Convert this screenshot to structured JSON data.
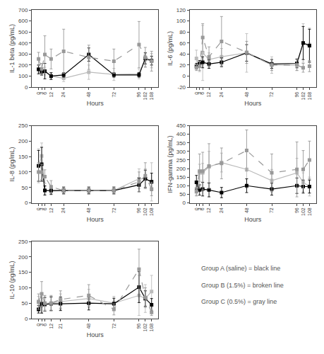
{
  "chart_data": [
    {
      "type": "line",
      "xlabel": "Hours",
      "ylabel": "IL-1 beta (pg/mL)",
      "x": [
        0,
        3,
        6,
        12,
        24,
        48,
        72,
        96,
        102,
        108
      ],
      "xlim": [
        -6.48,
        114.48
      ],
      "xticks": [
        0,
        3,
        6,
        12,
        24,
        48,
        72,
        96,
        102,
        108
      ],
      "ylim": [
        0,
        700
      ],
      "yticks": [
        0,
        100,
        200,
        300,
        400,
        500,
        600,
        700
      ],
      "grid": false,
      "series": [
        {
          "color": "#bbbbbb",
          "line_style": "solid",
          "marker": "square",
          "values": [
            165,
            135,
            145,
            100,
            80,
            135,
            115,
            120,
            250,
            240
          ],
          "errors": [
            35,
            30,
            35,
            30,
            30,
            65,
            55,
            45,
            65,
            65
          ]
        },
        {
          "color": "#000000",
          "line_style": "solid",
          "marker": "square",
          "values": [
            160,
            140,
            145,
            100,
            110,
            295,
            110,
            110,
            260,
            240
          ],
          "errors": [
            40,
            30,
            70,
            30,
            20,
            60,
            20,
            20,
            50,
            40
          ]
        },
        {
          "color": "#999999",
          "line_style": "dashed",
          "marker": "square",
          "values": [
            255,
            165,
            295,
            255,
            325,
            270,
            235,
            385,
            270,
            235
          ],
          "errors": [
            60,
            50,
            170,
            90,
            200,
            110,
            110,
            210,
            90,
            90
          ]
        }
      ]
    },
    {
      "type": "line",
      "xlabel": "Hours",
      "ylabel": "IL-6 (pg/mL)",
      "x": [
        0,
        3,
        6,
        12,
        24,
        48,
        72,
        96,
        102,
        108
      ],
      "xlim": [
        -6.48,
        114.48
      ],
      "xticks": [
        0,
        3,
        6,
        12,
        24,
        48,
        72,
        96,
        102,
        108
      ],
      "ylim": [
        -20,
        120
      ],
      "yticks": [
        -20,
        0,
        20,
        40,
        60,
        80,
        100,
        120
      ],
      "grid": false,
      "series": [
        {
          "color": "#bbbbbb",
          "line_style": "solid",
          "marker": "square",
          "values": [
            32,
            18,
            42,
            30,
            35,
            42,
            20,
            20,
            60,
            57
          ],
          "errors": [
            15,
            10,
            50,
            12,
            15,
            35,
            15,
            10,
            35,
            30
          ]
        },
        {
          "color": "#000000",
          "line_style": "solid",
          "marker": "square",
          "values": [
            18,
            23,
            25,
            22,
            25,
            42,
            22,
            23,
            60,
            55
          ],
          "errors": [
            5,
            5,
            10,
            8,
            8,
            15,
            8,
            8,
            30,
            30
          ]
        },
        {
          "color": "#999999",
          "line_style": "dashed",
          "marker": "square",
          "values": [
            15,
            18,
            70,
            35,
            63,
            43,
            20,
            20,
            15,
            18
          ],
          "errors": [
            5,
            8,
            25,
            18,
            45,
            20,
            10,
            10,
            8,
            10
          ]
        }
      ]
    },
    {
      "type": "line",
      "xlabel": "Hours",
      "ylabel": "IL-8 (pg/mL)",
      "x": [
        0,
        3,
        6,
        12,
        24,
        48,
        72,
        96,
        102,
        108
      ],
      "xlim": [
        -6.48,
        114.48
      ],
      "xticks": [
        0,
        3,
        6,
        12,
        24,
        48,
        72,
        96,
        102,
        108
      ],
      "ylim": [
        0,
        250
      ],
      "yticks": [
        0,
        50,
        100,
        150,
        200,
        250
      ],
      "grid": false,
      "series": [
        {
          "color": "#bbbbbb",
          "line_style": "solid",
          "marker": "square",
          "values": [
            120,
            152,
            40,
            38,
            40,
            40,
            40,
            78,
            78,
            68
          ],
          "errors": [
            55,
            42,
            12,
            12,
            12,
            12,
            12,
            32,
            32,
            62
          ]
        },
        {
          "color": "#000000",
          "line_style": "solid",
          "marker": "square",
          "values": [
            120,
            125,
            40,
            40,
            40,
            40,
            40,
            58,
            78,
            68
          ],
          "errors": [
            50,
            55,
            15,
            12,
            10,
            10,
            10,
            22,
            28,
            28
          ]
        },
        {
          "color": "#999999",
          "line_style": "dashed",
          "marker": "square",
          "values": [
            100,
            100,
            85,
            52,
            40,
            40,
            40,
            68,
            88,
            45
          ],
          "errors": [
            30,
            25,
            22,
            20,
            12,
            12,
            12,
            32,
            42,
            22
          ]
        }
      ]
    },
    {
      "type": "line",
      "xlabel": "Hours",
      "ylabel": "IFN-gamma (pg/mL)",
      "x": [
        0,
        3,
        6,
        12,
        24,
        48,
        72,
        96,
        102,
        108
      ],
      "xlim": [
        -6.48,
        114.48
      ],
      "xticks": [
        0,
        3,
        6,
        12,
        24,
        48,
        72,
        96,
        102,
        108
      ],
      "ylim": [
        0,
        450
      ],
      "yticks": [
        0,
        50,
        100,
        150,
        200,
        250,
        300,
        350,
        400,
        450
      ],
      "grid": false,
      "series": [
        {
          "color": "#bbbbbb",
          "line_style": "solid",
          "marker": "square",
          "values": [
            80,
            175,
            175,
            210,
            235,
            195,
            130,
            175,
            120,
            95
          ],
          "errors": [
            35,
            50,
            55,
            90,
            55,
            110,
            65,
            85,
            55,
            55
          ]
        },
        {
          "color": "#000000",
          "line_style": "solid",
          "marker": "square",
          "values": [
            120,
            75,
            80,
            75,
            60,
            100,
            80,
            100,
            95,
            95
          ],
          "errors": [
            40,
            30,
            40,
            40,
            30,
            40,
            35,
            45,
            38,
            38
          ]
        },
        {
          "color": "#999999",
          "line_style": "dashed",
          "marker": "square",
          "values": [
            65,
            185,
            185,
            215,
            230,
            305,
            175,
            195,
            195,
            250
          ],
          "errors": [
            25,
            100,
            110,
            130,
            90,
            120,
            110,
            160,
            110,
            110
          ]
        }
      ]
    },
    {
      "type": "line",
      "xlabel": "Hours",
      "ylabel": "IL-10 (pg/mL)",
      "x": [
        0,
        3,
        6,
        12,
        21,
        48,
        72,
        96,
        102,
        108
      ],
      "xlim": [
        -6.48,
        114.48
      ],
      "xticks": [
        0,
        3,
        6,
        12,
        21,
        48,
        72,
        96,
        102,
        108
      ],
      "ylim": [
        0,
        250
      ],
      "yticks": [
        0,
        50,
        100,
        150,
        200,
        250
      ],
      "grid": false,
      "series": [
        {
          "color": "#bbbbbb",
          "line_style": "solid",
          "marker": "square",
          "values": [
            52,
            42,
            50,
            50,
            55,
            65,
            50,
            75,
            65,
            88
          ],
          "errors": [
            20,
            25,
            22,
            22,
            25,
            30,
            22,
            65,
            45,
            52
          ]
        },
        {
          "color": "#000000",
          "line_style": "solid",
          "marker": "square",
          "values": [
            30,
            48,
            46,
            48,
            48,
            50,
            48,
            102,
            65,
            45
          ],
          "errors": [
            12,
            30,
            22,
            22,
            22,
            22,
            18,
            50,
            25,
            20
          ]
        },
        {
          "color": "#999999",
          "line_style": "dashed",
          "marker": "square",
          "values": [
            55,
            80,
            50,
            50,
            62,
            75,
            30,
            160,
            68,
            20
          ],
          "errors": [
            25,
            40,
            25,
            25,
            28,
            35,
            18,
            65,
            32,
            10
          ]
        }
      ]
    },
    {
      "type": "text",
      "color": "#555555",
      "annotations": [
        "Group A (saline) = black line",
        "Group B (1.5%) = broken line",
        "Group C (0.5%) = gray line"
      ]
    }
  ]
}
